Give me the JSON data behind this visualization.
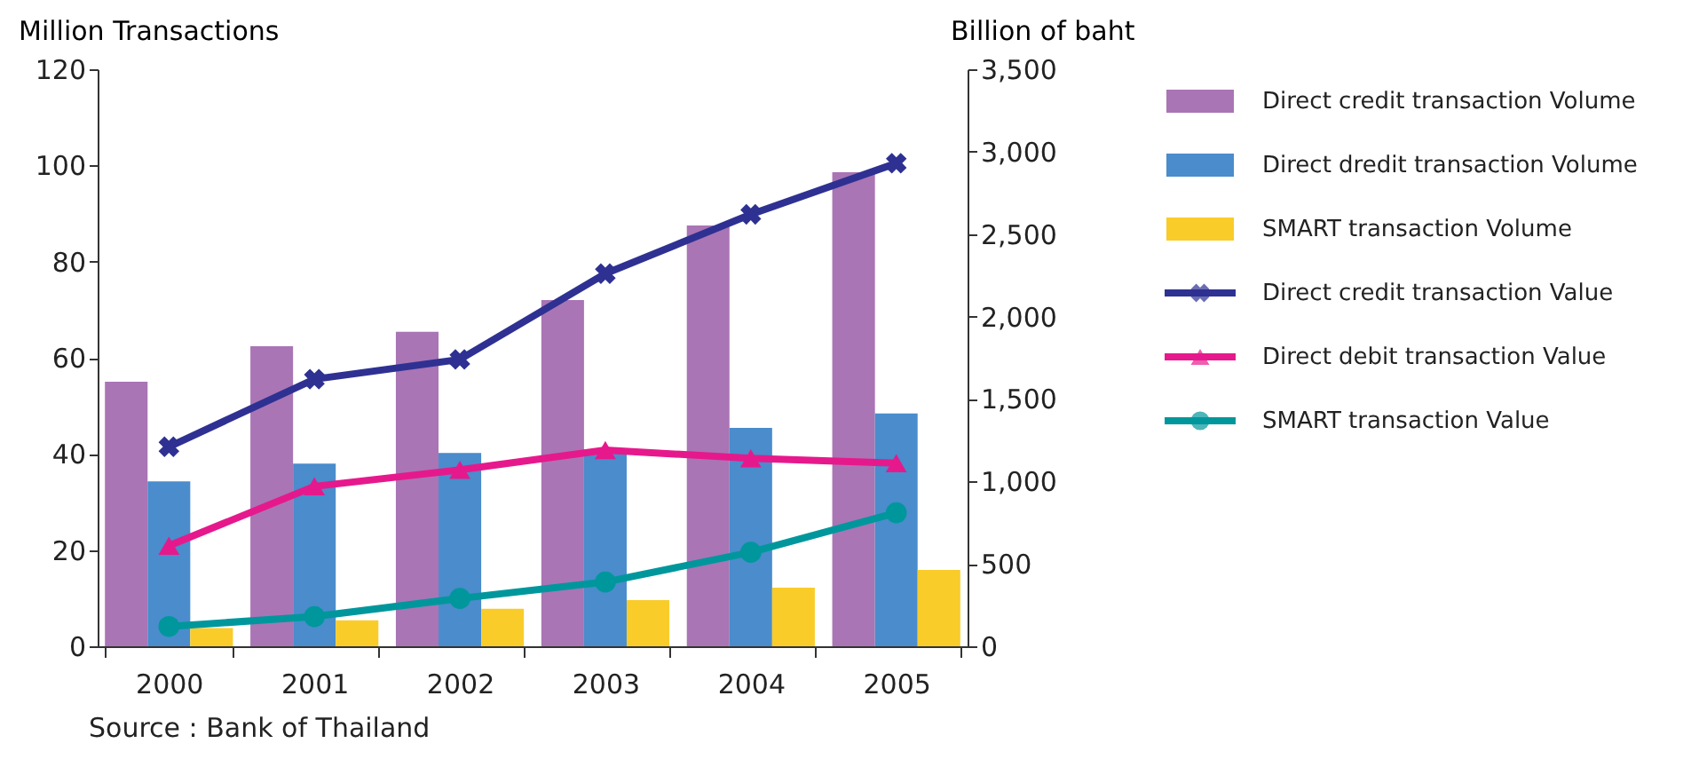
{
  "chart_data": {
    "type": "bar",
    "categories": [
      "2000",
      "2001",
      "2002",
      "2003",
      "2004",
      "2005"
    ],
    "ylabel": "Million Transactions",
    "y2label": "Billion of baht",
    "ylim": [
      0,
      120
    ],
    "yticks": [
      0,
      20,
      40,
      60,
      80,
      100,
      120
    ],
    "y2lim": [
      0,
      3500
    ],
    "y2ticks": [
      0,
      500,
      {
        "value": 1000,
        "label": "1,000"
      },
      {
        "value": 1500,
        "label": "1,500"
      },
      {
        "value": 2000,
        "label": "2,000"
      },
      {
        "value": 2500,
        "label": "2,500"
      },
      {
        "value": 3000,
        "label": "3,000"
      },
      {
        "value": 3500,
        "label": "3,500"
      }
    ],
    "grid": false,
    "legend": "right",
    "annotations": [
      "Source : Bank of Thailand"
    ],
    "series": [
      {
        "name": "Direct credit transaction Volume",
        "color": "#a975b5",
        "values": [
          55,
          62.4,
          65.4,
          72,
          87.5,
          98.6
        ]
      },
      {
        "name": "Direct dredit transaction Volume",
        "color": "#4a8ccc",
        "values": [
          34.3,
          38,
          40.2,
          40.1,
          45.4,
          48.4
        ]
      },
      {
        "name": "SMART transaction Volume",
        "color": "#f9cc2a",
        "values": [
          3.8,
          5.4,
          7.8,
          9.6,
          12.2,
          15.9
        ]
      },
      {
        "name": "Direct credit transaction Value",
        "type": "line",
        "axis": "y2",
        "marker": "cross",
        "color": "#2e3192",
        "values": [
          1210,
          1620,
          1740,
          2260,
          2620,
          2930
        ]
      },
      {
        "name": "Direct debit transaction Value",
        "type": "line",
        "axis": "y2",
        "marker": "triangle",
        "color": "#e6198c",
        "values": [
          610,
          970,
          1070,
          1190,
          1140,
          1110
        ]
      },
      {
        "name": "SMART transaction Value",
        "type": "line",
        "axis": "y2",
        "marker": "circle",
        "color": "#00979c",
        "values": [
          120,
          180,
          290,
          390,
          570,
          810
        ]
      }
    ]
  }
}
